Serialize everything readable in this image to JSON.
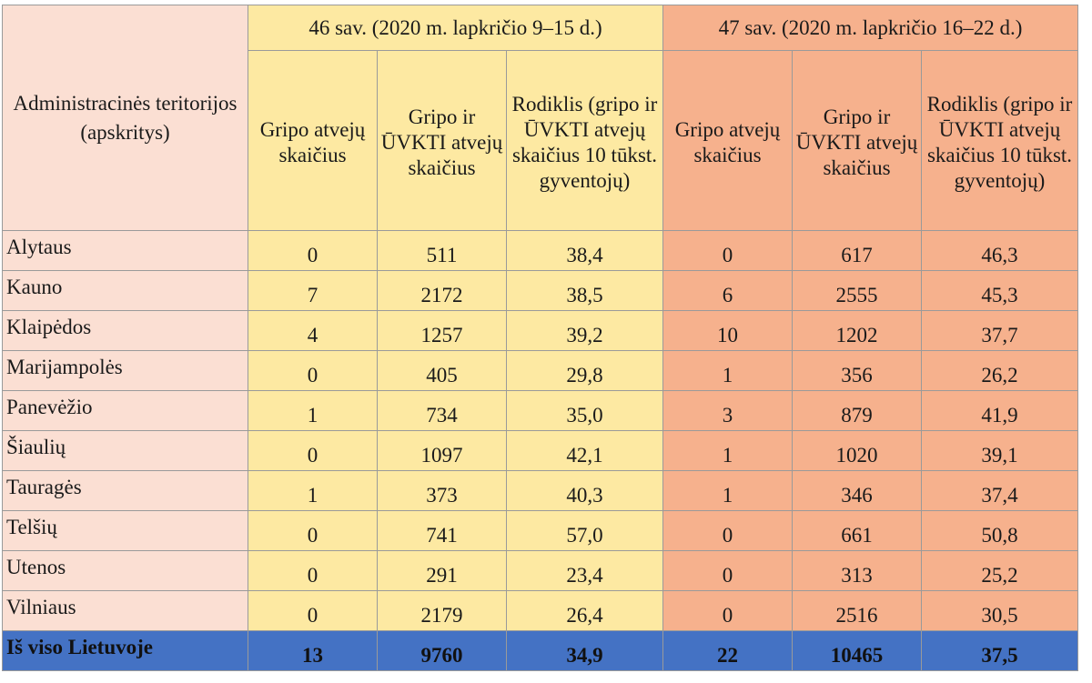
{
  "header": {
    "region_col": "Administracinės teritorijos (apskritys)",
    "week46": "46 sav. (2020 m. lapkričio 9–15 d.)",
    "week47": "47 sav. (2020 m. lapkričio 16–22 d.)",
    "sub": {
      "flu": "Gripo atvejų skaičius",
      "flu_ari": "Gripo ir ŪVKTI atvejų skaičius",
      "rate": "Rodiklis (gripo ir ŪVKTI atvejų skaičius 10 tūkst. gyventojų)"
    }
  },
  "rows": [
    {
      "region": "Alytaus",
      "w46": [
        "0",
        "511",
        "38,4"
      ],
      "w47": [
        "0",
        "617",
        "46,3"
      ]
    },
    {
      "region": "Kauno",
      "w46": [
        "7",
        "2172",
        "38,5"
      ],
      "w47": [
        "6",
        "2555",
        "45,3"
      ]
    },
    {
      "region": "Klaipėdos",
      "w46": [
        "4",
        "1257",
        "39,2"
      ],
      "w47": [
        "10",
        "1202",
        "37,7"
      ]
    },
    {
      "region": "Marijampolės",
      "w46": [
        "0",
        "405",
        "29,8"
      ],
      "w47": [
        "1",
        "356",
        "26,2"
      ]
    },
    {
      "region": "Panevėžio",
      "w46": [
        "1",
        "734",
        "35,0"
      ],
      "w47": [
        "3",
        "879",
        "41,9"
      ]
    },
    {
      "region": "Šiaulių",
      "w46": [
        "0",
        "1097",
        "42,1"
      ],
      "w47": [
        "1",
        "1020",
        "39,1"
      ]
    },
    {
      "region": "Tauragės",
      "w46": [
        "1",
        "373",
        "40,3"
      ],
      "w47": [
        "1",
        "346",
        "37,4"
      ]
    },
    {
      "region": "Telšių",
      "w46": [
        "0",
        "741",
        "57,0"
      ],
      "w47": [
        "0",
        "661",
        "50,8"
      ]
    },
    {
      "region": "Utenos",
      "w46": [
        "0",
        "291",
        "23,4"
      ],
      "w47": [
        "0",
        "313",
        "25,2"
      ]
    },
    {
      "region": "Vilniaus",
      "w46": [
        "0",
        "2179",
        "26,4"
      ],
      "w47": [
        "0",
        "2516",
        "30,5"
      ]
    }
  ],
  "total": {
    "label": "Iš viso Lietuvoje",
    "w46": [
      "13",
      "9760",
      "34,9"
    ],
    "w47": [
      "22",
      "10465",
      "37,5"
    ]
  }
}
